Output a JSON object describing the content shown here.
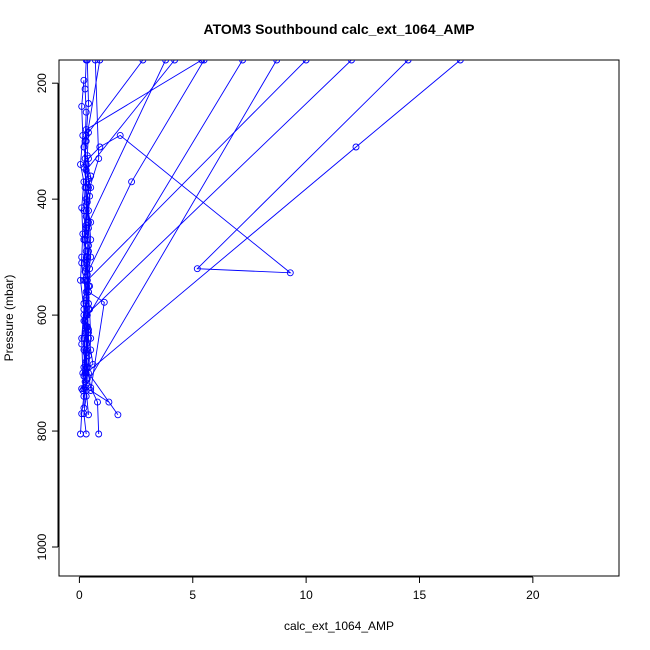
{
  "chart_data": {
    "type": "line",
    "title": "ATOM3 Southbound calc_ext_1064_AMP",
    "xlabel": "calc_ext_1064_AMP",
    "ylabel": "Pressure (mbar)",
    "xlim": [
      -0.9,
      23.8
    ],
    "ylim": [
      1050,
      160
    ],
    "y_reversed": true,
    "grid": false,
    "x_ticks": [
      0,
      5,
      10,
      15,
      20
    ],
    "y_ticks": [
      200,
      400,
      600,
      800,
      1000
    ],
    "color": "#0000ff",
    "series": [
      {
        "points": [
          [
            0.05,
            805
          ],
          [
            0.1,
            770
          ],
          [
            0.2,
            740
          ],
          [
            0.15,
            700
          ],
          [
            0.1,
            640
          ],
          [
            0.2,
            590
          ],
          [
            0.05,
            540
          ],
          [
            0.1,
            500
          ],
          [
            0.15,
            460
          ],
          [
            0.1,
            415
          ],
          [
            0.2,
            370
          ],
          [
            0.05,
            340
          ],
          [
            0.15,
            290
          ],
          [
            0.1,
            240
          ],
          [
            0.2,
            195
          ]
        ]
      },
      {
        "points": [
          [
            0.3,
            805
          ],
          [
            0.2,
            770
          ],
          [
            0.3,
            740
          ],
          [
            0.25,
            725
          ],
          [
            0.3,
            690
          ],
          [
            0.2,
            640
          ],
          [
            0.3,
            580
          ],
          [
            0.25,
            525
          ],
          [
            0.2,
            470
          ],
          [
            0.3,
            420
          ],
          [
            0.25,
            330
          ],
          [
            0.3,
            290
          ],
          [
            0.4,
            235
          ],
          [
            0.35,
            160
          ]
        ]
      },
      {
        "points": [
          [
            0.85,
            805
          ],
          [
            0.8,
            750
          ],
          [
            0.5,
            725
          ],
          [
            0.3,
            680
          ],
          [
            0.35,
            620
          ],
          [
            0.4,
            560
          ],
          [
            0.35,
            500
          ],
          [
            0.4,
            440
          ],
          [
            0.3,
            380
          ],
          [
            0.4,
            330
          ],
          [
            0.9,
            310
          ],
          [
            1.8,
            290
          ],
          [
            9.3,
            527
          ],
          [
            5.2,
            520
          ],
          [
            14.5,
            160
          ]
        ]
      },
      {
        "points": [
          [
            1.7,
            772
          ],
          [
            0.4,
            700
          ],
          [
            0.5,
            640
          ],
          [
            0.45,
            590
          ],
          [
            0.35,
            540
          ],
          [
            0.5,
            500
          ],
          [
            0.4,
            450
          ],
          [
            0.3,
            400
          ],
          [
            0.85,
            330
          ],
          [
            0.7,
            160
          ]
        ]
      },
      {
        "points": [
          [
            1.3,
            750
          ],
          [
            0.5,
            730
          ],
          [
            1.1,
            578
          ],
          [
            0.4,
            560
          ],
          [
            0.45,
            520
          ],
          [
            2.3,
            370
          ],
          [
            5.5,
            160
          ]
        ]
      },
      {
        "points": [
          [
            0.1,
            727
          ],
          [
            0.3,
            700
          ],
          [
            12.2,
            310
          ],
          [
            16.8,
            160
          ]
        ]
      },
      {
        "points": [
          [
            0.2,
            727
          ],
          [
            8.7,
            160
          ]
        ]
      },
      {
        "points": [
          [
            0.4,
            772
          ],
          [
            0.3,
            730
          ],
          [
            0.35,
            690
          ],
          [
            0.6,
            685
          ],
          [
            0.5,
            660
          ],
          [
            0.4,
            640
          ],
          [
            0.35,
            600
          ],
          [
            0.45,
            550
          ],
          [
            0.3,
            510
          ],
          [
            0.4,
            480
          ],
          [
            0.3,
            450
          ],
          [
            3.8,
            160
          ]
        ]
      },
      {
        "points": [
          [
            0.1,
            650
          ],
          [
            0.2,
            610
          ],
          [
            0.3,
            570
          ],
          [
            0.2,
            540
          ],
          [
            0.1,
            510
          ],
          [
            0.3,
            490
          ],
          [
            0.2,
            470
          ],
          [
            0.5,
            440
          ],
          [
            0.3,
            410
          ],
          [
            0.4,
            380
          ],
          [
            0.5,
            360
          ],
          [
            0.3,
            340
          ],
          [
            0.2,
            310
          ],
          [
            0.3,
            280
          ],
          [
            5.4,
            160
          ]
        ]
      },
      {
        "points": [
          [
            0.2,
            705
          ],
          [
            0.3,
            650
          ],
          [
            0.2,
            600
          ],
          [
            0.4,
            550
          ],
          [
            0.3,
            505
          ],
          [
            0.25,
            470
          ],
          [
            0.3,
            430
          ],
          [
            0.45,
            395
          ],
          [
            0.3,
            370
          ],
          [
            0.2,
            345
          ],
          [
            0.3,
            300
          ],
          [
            0.9,
            160
          ]
        ]
      },
      {
        "points": [
          [
            0.2,
            760
          ],
          [
            0.25,
            715
          ],
          [
            0.2,
            660
          ],
          [
            0.3,
            620
          ],
          [
            0.2,
            580
          ],
          [
            0.25,
            540
          ],
          [
            0.3,
            500
          ],
          [
            0.25,
            460
          ],
          [
            0.2,
            420
          ],
          [
            0.25,
            380
          ],
          [
            0.3,
            340
          ],
          [
            0.25,
            300
          ],
          [
            0.3,
            250
          ],
          [
            0.25,
            210
          ],
          [
            0.3,
            160
          ]
        ]
      },
      {
        "points": [
          [
            0.15,
            730
          ],
          [
            0.2,
            690
          ],
          [
            0.3,
            650
          ],
          [
            0.25,
            610
          ],
          [
            7.2,
            160
          ]
        ]
      },
      {
        "points": [
          [
            0.3,
            720
          ],
          [
            0.4,
            670
          ],
          [
            0.3,
            630
          ],
          [
            0.4,
            590
          ],
          [
            0.3,
            560
          ],
          [
            0.35,
            540
          ],
          [
            10.0,
            160
          ]
        ]
      },
      {
        "points": [
          [
            0.25,
            700
          ],
          [
            0.3,
            660
          ],
          [
            0.35,
            620
          ],
          [
            0.4,
            580
          ],
          [
            0.3,
            520
          ],
          [
            0.5,
            470
          ],
          [
            0.4,
            420
          ],
          [
            0.5,
            380
          ],
          [
            0.3,
            350
          ],
          [
            4.2,
            160
          ]
        ]
      },
      {
        "points": [
          [
            0.3,
            690
          ],
          [
            0.4,
            630
          ],
          [
            0.3,
            600
          ],
          [
            12.0,
            160
          ]
        ]
      },
      {
        "points": [
          [
            0.35,
            710
          ],
          [
            0.3,
            665
          ],
          [
            0.4,
            625
          ],
          [
            0.3,
            575
          ],
          [
            0.35,
            530
          ],
          [
            0.4,
            490
          ],
          [
            0.3,
            445
          ],
          [
            0.35,
            405
          ],
          [
            0.4,
            365
          ],
          [
            0.35,
            325
          ],
          [
            0.4,
            285
          ],
          [
            2.8,
            160
          ]
        ]
      }
    ]
  }
}
